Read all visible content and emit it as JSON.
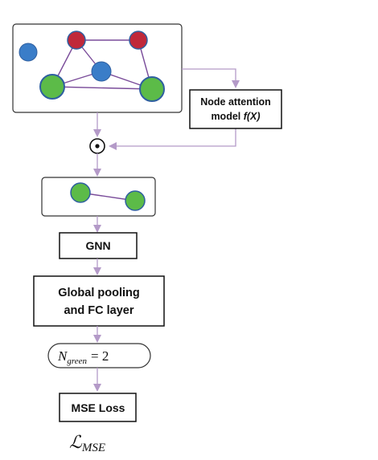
{
  "attention_box": {
    "line1": "Node attention",
    "line2_prefix": "model ",
    "line2_func": "f(X)"
  },
  "gnn_box": {
    "label": "GNN"
  },
  "pooling_box": {
    "line1": "Global pooling",
    "line2": "and FC layer"
  },
  "count_pill": {
    "symbol": "N",
    "subscript": "green",
    "equals": "= 2"
  },
  "loss_box": {
    "label": "MSE Loss"
  },
  "loss_symbol": {
    "symbol": "ℒ",
    "subscript": "MSE"
  },
  "colors": {
    "red_node": "#c0283a",
    "blue_node": "#3a7dc8",
    "green_node": "#5cbb48",
    "node_stroke": "#2f5fa0",
    "edge": "#7a4c9a",
    "arrow": "#b49ac8",
    "box_border": "#111111"
  }
}
